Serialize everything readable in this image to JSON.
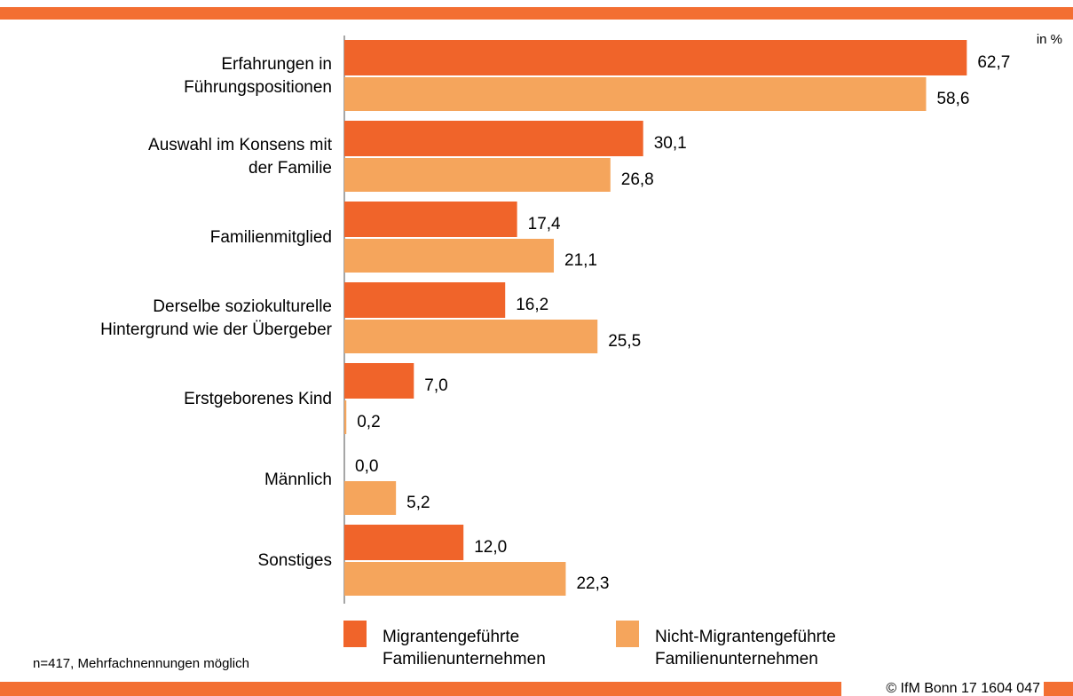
{
  "chart_data": {
    "type": "hbar",
    "unit_note": "in %",
    "categories": [
      "Erfahrungen in\nFührungspositionen",
      "Auswahl im Konsens mit\nder Familie",
      "Familienmitglied",
      "Derselbe soziokulturelle\nHintergrund wie der Übergeber",
      "Erstgeborenes Kind",
      "Männlich",
      "Sonstiges"
    ],
    "series": [
      {
        "name": "Migrantengeführte\nFamilienunternehmen",
        "color": "#f0642a",
        "values": [
          62.7,
          30.1,
          17.4,
          16.2,
          7.0,
          0.0,
          12.0
        ],
        "value_labels": [
          "62,7",
          "30,1",
          "17,4",
          "16,2",
          "7,0",
          "0,0",
          "12,0"
        ]
      },
      {
        "name": "Nicht-Migrantengeführte\nFamilienunternehmen",
        "color": "#f5a55c",
        "values": [
          58.6,
          26.8,
          21.1,
          25.5,
          0.2,
          5.2,
          22.3
        ],
        "value_labels": [
          "58,6",
          "26,8",
          "21,1",
          "25,5",
          "0,2",
          "5,2",
          "22,3"
        ]
      }
    ],
    "xlim": [
      0,
      70
    ],
    "footnote": "n=417, Mehrfachnennungen möglich",
    "source": "© IfM Bonn 17 1604 047"
  }
}
